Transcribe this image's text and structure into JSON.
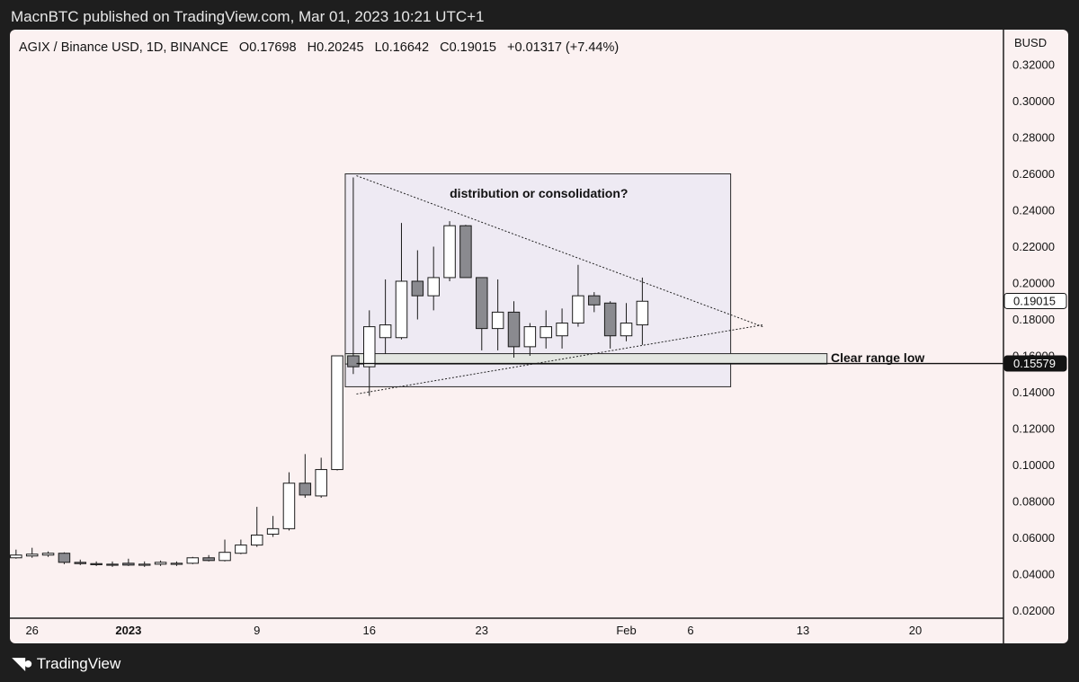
{
  "header": {
    "published": "MacnBTC published on TradingView.com, Mar 01, 2023 10:21 UTC+1"
  },
  "footer": {
    "brand": "TradingView"
  },
  "colors": {
    "panel_bg": "#fbf1f1",
    "frame": "#1e1e1e",
    "bull": "#ffffff",
    "bear": "#8a8a8f",
    "wick": "#1a1a1a",
    "range_box": "#eeeaf3",
    "range_low_box": "#e3e6e1"
  },
  "chart_data": {
    "type": "candlestick",
    "symbol_line": "AGIX / Binance USD, 1D, BINANCE",
    "ohlc_label": {
      "o": "O0.17698",
      "h": "H0.20245",
      "l": "L0.16642",
      "c": "C0.19015",
      "chg": "+0.01317 (+7.44%)"
    },
    "currency": "BUSD",
    "ylim": [
      0.012,
      0.334
    ],
    "y_ticks": [
      "0.32000",
      "0.30000",
      "0.28000",
      "0.26000",
      "0.24000",
      "0.22000",
      "0.20000",
      "0.18000",
      "0.16000",
      "0.14000",
      "0.12000",
      "0.10000",
      "0.08000",
      "0.06000",
      "0.04000",
      "0.02000"
    ],
    "x_ticks": [
      {
        "label": "26",
        "day": 0
      },
      {
        "label": "2023",
        "day": 6
      },
      {
        "label": "9",
        "day": 14
      },
      {
        "label": "16",
        "day": 21
      },
      {
        "label": "23",
        "day": 28
      },
      {
        "label": "Feb",
        "day": 37
      },
      {
        "label": "6",
        "day": 41
      },
      {
        "label": "13",
        "day": 48
      },
      {
        "label": "20",
        "day": 55
      }
    ],
    "candles": [
      {
        "day": -1,
        "o": 0.049,
        "h": 0.0535,
        "l": 0.0485,
        "c": 0.0505
      },
      {
        "day": 0,
        "o": 0.05,
        "h": 0.0545,
        "l": 0.049,
        "c": 0.051
      },
      {
        "day": 1,
        "o": 0.0505,
        "h": 0.0525,
        "l": 0.0495,
        "c": 0.0515
      },
      {
        "day": 2,
        "o": 0.0515,
        "h": 0.052,
        "l": 0.0455,
        "c": 0.0465
      },
      {
        "day": 3,
        "o": 0.0465,
        "h": 0.048,
        "l": 0.045,
        "c": 0.0458
      },
      {
        "day": 4,
        "o": 0.0458,
        "h": 0.047,
        "l": 0.0445,
        "c": 0.0455
      },
      {
        "day": 5,
        "o": 0.0455,
        "h": 0.047,
        "l": 0.044,
        "c": 0.045
      },
      {
        "day": 6,
        "o": 0.046,
        "h": 0.0485,
        "l": 0.0445,
        "c": 0.045
      },
      {
        "day": 7,
        "o": 0.045,
        "h": 0.047,
        "l": 0.044,
        "c": 0.0455
      },
      {
        "day": 8,
        "o": 0.0455,
        "h": 0.0475,
        "l": 0.0445,
        "c": 0.0465
      },
      {
        "day": 9,
        "o": 0.0455,
        "h": 0.047,
        "l": 0.0445,
        "c": 0.046
      },
      {
        "day": 10,
        "o": 0.046,
        "h": 0.0495,
        "l": 0.0455,
        "c": 0.049
      },
      {
        "day": 11,
        "o": 0.049,
        "h": 0.0505,
        "l": 0.047,
        "c": 0.0475
      },
      {
        "day": 12,
        "o": 0.0475,
        "h": 0.059,
        "l": 0.047,
        "c": 0.052
      },
      {
        "day": 13,
        "o": 0.0515,
        "h": 0.059,
        "l": 0.051,
        "c": 0.056
      },
      {
        "day": 14,
        "o": 0.056,
        "h": 0.077,
        "l": 0.055,
        "c": 0.0615
      },
      {
        "day": 15,
        "o": 0.062,
        "h": 0.072,
        "l": 0.0605,
        "c": 0.065
      },
      {
        "day": 16,
        "o": 0.065,
        "h": 0.096,
        "l": 0.064,
        "c": 0.09
      },
      {
        "day": 17,
        "o": 0.09,
        "h": 0.106,
        "l": 0.082,
        "c": 0.0835
      },
      {
        "day": 18,
        "o": 0.083,
        "h": 0.104,
        "l": 0.082,
        "c": 0.0975
      },
      {
        "day": 19,
        "o": 0.0975,
        "h": 0.16,
        "l": 0.097,
        "c": 0.16
      },
      {
        "day": 20,
        "o": 0.16,
        "h": 0.258,
        "l": 0.15,
        "c": 0.154
      },
      {
        "day": 21,
        "o": 0.154,
        "h": 0.185,
        "l": 0.138,
        "c": 0.176
      },
      {
        "day": 22,
        "o": 0.17,
        "h": 0.202,
        "l": 0.161,
        "c": 0.177
      },
      {
        "day": 23,
        "o": 0.17,
        "h": 0.233,
        "l": 0.169,
        "c": 0.201
      },
      {
        "day": 24,
        "o": 0.201,
        "h": 0.218,
        "l": 0.18,
        "c": 0.193
      },
      {
        "day": 25,
        "o": 0.193,
        "h": 0.22,
        "l": 0.185,
        "c": 0.203
      },
      {
        "day": 26,
        "o": 0.203,
        "h": 0.234,
        "l": 0.201,
        "c": 0.2315
      },
      {
        "day": 27,
        "o": 0.2315,
        "h": 0.232,
        "l": 0.203,
        "c": 0.203
      },
      {
        "day": 28,
        "o": 0.203,
        "h": 0.203,
        "l": 0.163,
        "c": 0.175
      },
      {
        "day": 29,
        "o": 0.175,
        "h": 0.202,
        "l": 0.163,
        "c": 0.184
      },
      {
        "day": 30,
        "o": 0.184,
        "h": 0.19,
        "l": 0.159,
        "c": 0.165
      },
      {
        "day": 31,
        "o": 0.165,
        "h": 0.178,
        "l": 0.16,
        "c": 0.176
      },
      {
        "day": 32,
        "o": 0.17,
        "h": 0.185,
        "l": 0.164,
        "c": 0.176
      },
      {
        "day": 33,
        "o": 0.171,
        "h": 0.186,
        "l": 0.164,
        "c": 0.178
      },
      {
        "day": 34,
        "o": 0.178,
        "h": 0.21,
        "l": 0.176,
        "c": 0.193
      },
      {
        "day": 35,
        "o": 0.193,
        "h": 0.195,
        "l": 0.184,
        "c": 0.188
      },
      {
        "day": 36,
        "o": 0.189,
        "h": 0.19,
        "l": 0.164,
        "c": 0.171
      },
      {
        "day": 37,
        "o": 0.171,
        "h": 0.189,
        "l": 0.168,
        "c": 0.178
      },
      {
        "day": 38,
        "o": 0.177,
        "h": 0.203,
        "l": 0.166,
        "c": 0.19
      }
    ],
    "annotations": {
      "range_box_label": "distribution or consolidation?",
      "range_low_label": "Clear range low",
      "range_box": {
        "day_start": 19.5,
        "day_end": 43.5,
        "price_top": 0.26,
        "price_bottom": 0.143
      },
      "range_low_box": {
        "day_start": 19.5,
        "day_end": 49.5,
        "price_top": 0.1612,
        "price_bottom": 0.1555
      },
      "upper_trendline": [
        {
          "day": 20.2,
          "price": 0.259
        },
        {
          "day": 45.5,
          "price": 0.176
        }
      ],
      "lower_trendline": [
        {
          "day": 20.2,
          "price": 0.139
        },
        {
          "day": 45.5,
          "price": 0.177
        }
      ]
    },
    "price_markers": [
      {
        "label": "0.19015",
        "price": 0.19015,
        "style": "current"
      },
      {
        "label": "0.15579",
        "price": 0.15579,
        "style": "level"
      }
    ]
  }
}
